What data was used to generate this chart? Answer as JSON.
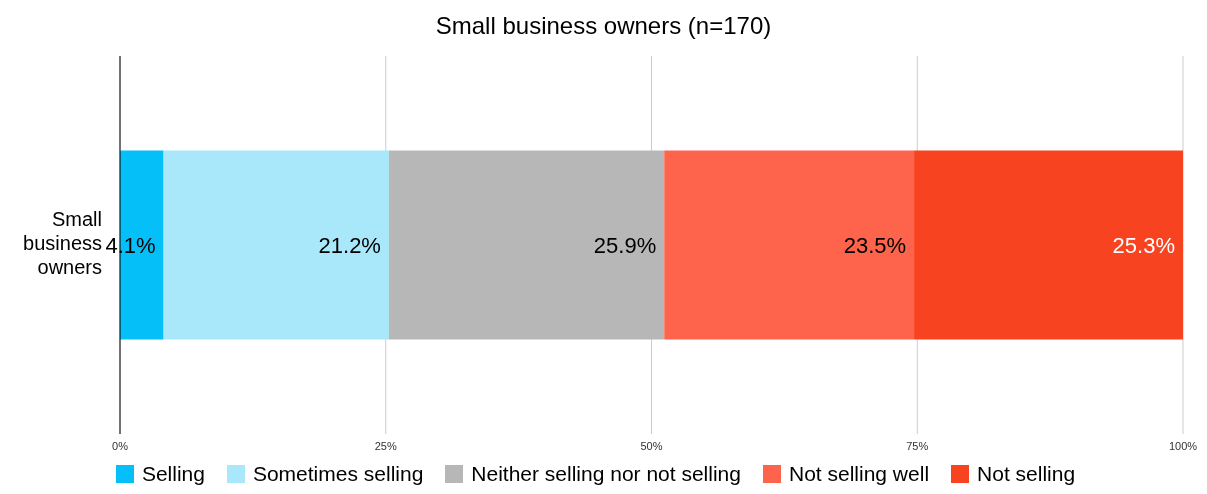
{
  "chart_data": {
    "type": "bar",
    "orientation": "horizontal",
    "stacked": true,
    "title": "Small business owners (n=170)",
    "categories": [
      "Small business owners"
    ],
    "series": [
      {
        "name": "Selling",
        "color": "#04bff8",
        "values": [
          4.1
        ],
        "value_labels": [
          "4.1%"
        ]
      },
      {
        "name": "Sometimes selling",
        "color": "#a9e8fb",
        "values": [
          21.2
        ],
        "value_labels": [
          "21.2%"
        ]
      },
      {
        "name": "Neither selling nor not selling",
        "color": "#b7b7b7",
        "values": [
          25.9
        ],
        "value_labels": [
          "25.9%"
        ]
      },
      {
        "name": "Not selling well",
        "color": "#fd644b",
        "values": [
          23.5
        ],
        "value_labels": [
          "23.5%"
        ]
      },
      {
        "name": "Not selling",
        "color": "#f84321",
        "values": [
          25.3
        ],
        "value_labels": [
          "25.3%"
        ]
      }
    ],
    "xlim": [
      0,
      100
    ],
    "xticks": [
      {
        "value": 0,
        "label": "0%"
      },
      {
        "value": 25,
        "label": "25%"
      },
      {
        "value": 50,
        "label": "50%"
      },
      {
        "value": 75,
        "label": "75%"
      },
      {
        "value": 100,
        "label": "100%"
      }
    ],
    "grid": "x",
    "legend": "bottom"
  }
}
